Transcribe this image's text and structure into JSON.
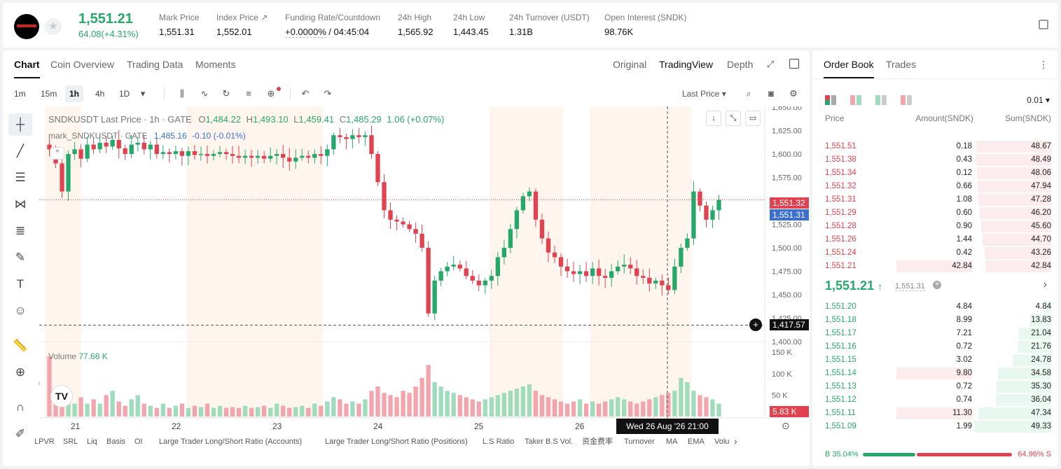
{
  "header": {
    "last_price": "1,551.21",
    "change": "64.08(+4.31%)",
    "stats": [
      {
        "label": "Mark Price",
        "value": "1,551.31"
      },
      {
        "label": "Index Price ↗",
        "value": "1,552.01"
      },
      {
        "label": "Funding Rate/Countdown",
        "value_a": "+0.0000%",
        "value_b": "/ 04:45:04"
      },
      {
        "label": "24h High",
        "value": "1,565.92"
      },
      {
        "label": "24h Low",
        "value": "1,443.45"
      },
      {
        "label": "24h Turnover (USDT)",
        "value": "1.31B"
      },
      {
        "label": "Open Interest (SNDK)",
        "value": "98.76K"
      }
    ]
  },
  "chart_tabs": [
    "Chart",
    "Coin Overview",
    "Trading Data",
    "Moments"
  ],
  "view_tabs": [
    "Original",
    "TradingView",
    "Depth"
  ],
  "timeframes": [
    "1m",
    "15m",
    "1h",
    "4h",
    "1D"
  ],
  "price_source": "Last Price",
  "legend": {
    "symbol": "SNDKUSDT Last Price · 1h · GATE",
    "o_label": "O",
    "o": "1,484.22",
    "h_label": "H",
    "h": "1,493.10",
    "l_label": "L",
    "l": "1,459.41",
    "c_label": "C",
    "c": "1,485.29",
    "chg": "1.06 (+0.07%)",
    "mark": "mark_SNDKUSDT · GATE",
    "mark_val": "1,485.16",
    "mark_chg": "-0.10 (-0.01%)",
    "vol_label": "Volume",
    "vol_val": "77.68 K"
  },
  "price_tags": {
    "last": "1,551.32",
    "mark": "1,551.31",
    "cross": "1,417.57",
    "vol": "5.83 K"
  },
  "crosshair_time": "Wed 26 Aug '26  21:00",
  "chart_data": {
    "type": "candlestick",
    "symbol": "SNDKUSDT",
    "interval": "1h",
    "y_ticks": [
      "1,650.00",
      "1,625.00",
      "1,600.00",
      "1,575.00",
      "1,550.00",
      "1,525.00",
      "1,500.00",
      "1,475.00",
      "1,450.00",
      "1,425.00",
      "1,400.00"
    ],
    "y_range": [
      1400,
      1650
    ],
    "volume_ticks": [
      "150 K",
      "100 K",
      "50 K"
    ],
    "x_ticks": [
      "21",
      "22",
      "23",
      "24",
      "25",
      "26"
    ],
    "close_path": [
      1605,
      1590,
      1560,
      1600,
      1605,
      1595,
      1610,
      1605,
      1612,
      1608,
      1615,
      1606,
      1600,
      1610,
      1612,
      1605,
      1610,
      1600,
      1602,
      1600,
      1603,
      1598,
      1603,
      1599,
      1600,
      1598,
      1600,
      1602,
      1600,
      1598,
      1596,
      1598,
      1596,
      1598,
      1595,
      1598,
      1600,
      1596,
      1592,
      1596,
      1598,
      1596,
      1600,
      1598,
      1605,
      1620,
      1618,
      1616,
      1620,
      1618,
      1620,
      1600,
      1570,
      1540,
      1530,
      1528,
      1525,
      1520,
      1515,
      1500,
      1430,
      1465,
      1475,
      1480,
      1482,
      1478,
      1470,
      1465,
      1460,
      1465,
      1470,
      1490,
      1500,
      1520,
      1540,
      1555,
      1560,
      1530,
      1510,
      1495,
      1490,
      1480,
      1475,
      1472,
      1475,
      1470,
      1478,
      1470,
      1468,
      1475,
      1480,
      1482,
      1478,
      1470,
      1468,
      1462,
      1465,
      1460,
      1455,
      1480,
      1500,
      1510,
      1560,
      1545,
      1530,
      1540,
      1551
    ],
    "volume_path": [
      140,
      60,
      40,
      35,
      30,
      45,
      30,
      40,
      30,
      50,
      60,
      35,
      25,
      40,
      50,
      30,
      25,
      20,
      30,
      20,
      25,
      30,
      20,
      25,
      22,
      30,
      20,
      25,
      20,
      22,
      20,
      25,
      20,
      22,
      25,
      20,
      30,
      25,
      20,
      22,
      25,
      20,
      30,
      25,
      35,
      45,
      40,
      30,
      35,
      30,
      40,
      60,
      70,
      55,
      50,
      45,
      60,
      55,
      70,
      90,
      120,
      80,
      70,
      60,
      55,
      50,
      45,
      40,
      35,
      40,
      45,
      50,
      55,
      60,
      65,
      70,
      75,
      60,
      50,
      45,
      40,
      35,
      30,
      35,
      40,
      30,
      35,
      30,
      35,
      40,
      45,
      40,
      35,
      30,
      35,
      40,
      45,
      50,
      55,
      60,
      90,
      80,
      60,
      50,
      45,
      40,
      30
    ]
  },
  "left_tools": [
    "cursor",
    "trendline",
    "horizontal-lines",
    "pattern",
    "fib",
    "brush",
    "text",
    "emoji",
    "ruler",
    "zoom-in",
    "magnet",
    "pencil"
  ],
  "indicators": [
    "LPVR",
    "SRL",
    "Liq",
    "Basis",
    "OI",
    "Large Trader Long/Short Ratio (Accounts)",
    "Large Trader Long/Short Ratio (Positions)",
    "L.S Ratio",
    "Taker B.S Vol.",
    "资金费率",
    "Turnover",
    "MA",
    "EMA",
    "Volu"
  ],
  "orderbook": {
    "tabs": [
      "Order Book",
      "Trades"
    ],
    "precision": "0.01",
    "headers": [
      "Price",
      "Amount(SNDK)",
      "Sum(SNDK)"
    ],
    "asks": [
      {
        "p": "1,551.51",
        "a": "0.18",
        "s": "48.67"
      },
      {
        "p": "1,551.38",
        "a": "0.43",
        "s": "48.49"
      },
      {
        "p": "1,551.34",
        "a": "0.12",
        "s": "48.06"
      },
      {
        "p": "1,551.32",
        "a": "0.66",
        "s": "47.94"
      },
      {
        "p": "1,551.31",
        "a": "1.08",
        "s": "47.28"
      },
      {
        "p": "1,551.29",
        "a": "0.60",
        "s": "46.20"
      },
      {
        "p": "1,551.28",
        "a": "0.90",
        "s": "45.60"
      },
      {
        "p": "1,551.26",
        "a": "1.44",
        "s": "44.70"
      },
      {
        "p": "1,551.24",
        "a": "0.42",
        "s": "43.26"
      },
      {
        "p": "1,551.21",
        "a": "42.84",
        "s": "42.84"
      }
    ],
    "mid_price": "1,551.21",
    "mid_arrow": "↑",
    "mid_mark": "1,551.31",
    "bids": [
      {
        "p": "1,551.20",
        "a": "4.84",
        "s": "4.84"
      },
      {
        "p": "1,551.18",
        "a": "8.99",
        "s": "13.83"
      },
      {
        "p": "1,551.17",
        "a": "7.21",
        "s": "21.04"
      },
      {
        "p": "1,551.16",
        "a": "0.72",
        "s": "21.76"
      },
      {
        "p": "1,551.15",
        "a": "3.02",
        "s": "24.78"
      },
      {
        "p": "1,551.14",
        "a": "9.80",
        "s": "34.58"
      },
      {
        "p": "1,551.13",
        "a": "0.72",
        "s": "35.30"
      },
      {
        "p": "1,551.12",
        "a": "0.74",
        "s": "36.04"
      },
      {
        "p": "1,551.11",
        "a": "11.30",
        "s": "47.34"
      },
      {
        "p": "1,551.09",
        "a": "1.99",
        "s": "49.33"
      }
    ],
    "buy_ratio": "B 35.04%",
    "sell_ratio": "64.96% S",
    "buy_pct": 35.04
  },
  "colors": {
    "up": "#26a86a",
    "down": "#e0424f",
    "mark": "#3b6fd2"
  }
}
